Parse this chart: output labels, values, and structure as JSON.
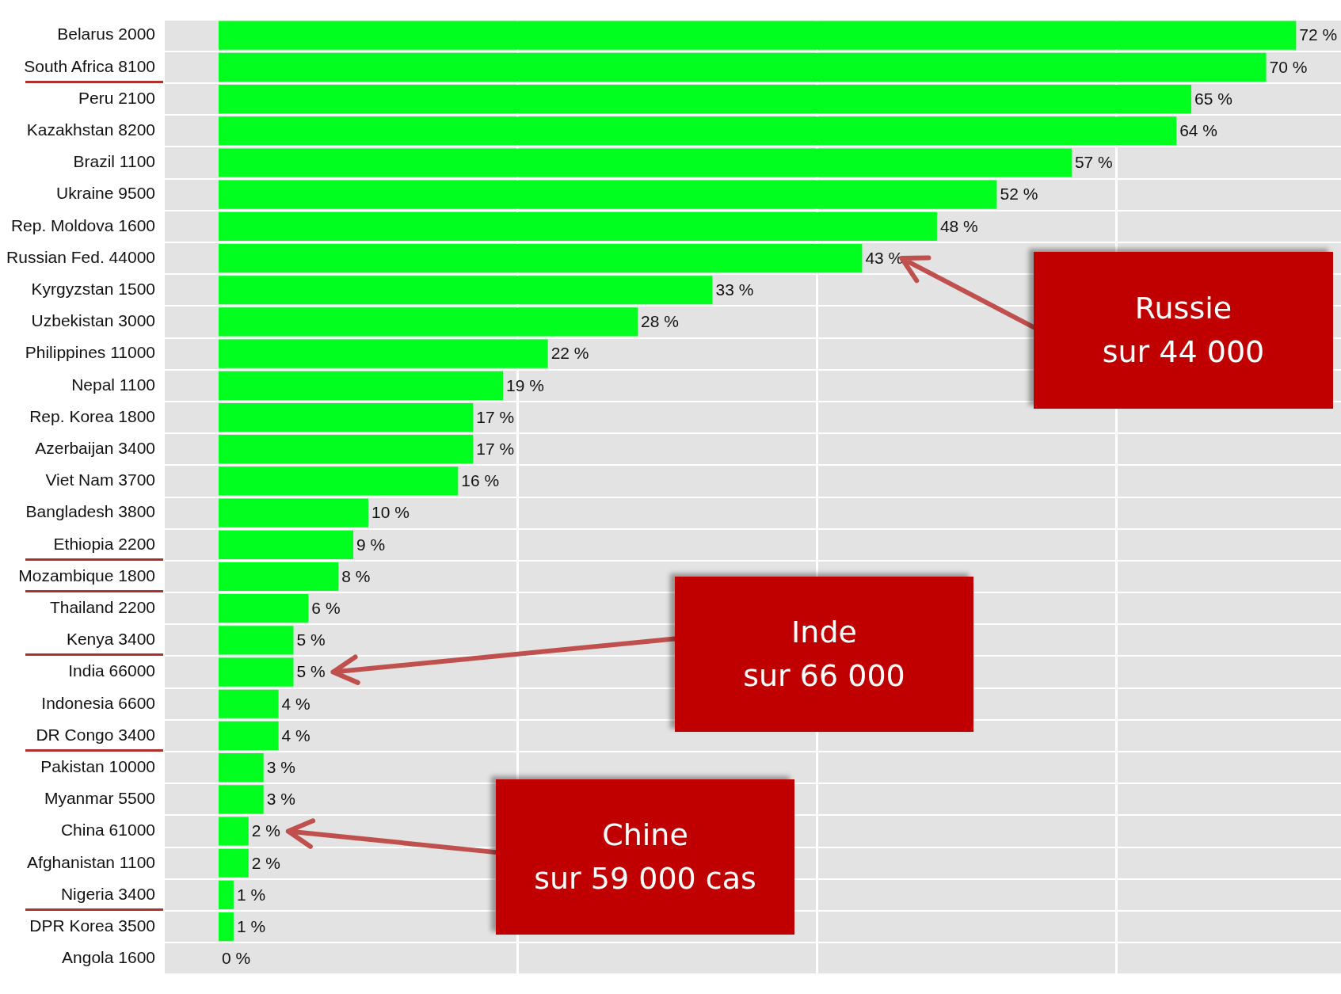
{
  "chart_data": {
    "type": "bar",
    "orientation": "horizontal",
    "categories": [
      "Belarus 2000",
      "South Africa 8100",
      "Peru 2100",
      "Kazakhstan 8200",
      "Brazil 1100",
      "Ukraine 9500",
      "Rep. Moldova 1600",
      "Russian Fed. 44000",
      "Kyrgyzstan 1500",
      "Uzbekistan 3000",
      "Philippines 11000",
      "Nepal 1100",
      "Rep. Korea 1800",
      "Azerbaijan 3400",
      "Viet Nam 3700",
      "Bangladesh 3800",
      "Ethiopia 2200",
      "Mozambique 1800",
      "Thailand 2200",
      "Kenya 3400",
      "India 66000",
      "Indonesia 6600",
      "DR Congo 3400",
      "Pakistan 10000",
      "Myanmar 5500",
      "China 61000",
      "Afghanistan 1100",
      "Nigeria 3400",
      "DPR Korea 3500",
      "Angola 1600"
    ],
    "values": [
      72,
      70,
      65,
      64,
      57,
      52,
      48,
      43,
      33,
      28,
      22,
      19,
      17,
      17,
      16,
      10,
      9,
      8,
      6,
      5,
      5,
      4,
      4,
      3,
      3,
      2,
      2,
      1,
      1,
      0
    ],
    "value_labels": [
      "72 %",
      "70 %",
      "65 %",
      "64 %",
      "57 %",
      "52 %",
      "48 %",
      "43 %",
      "33 %",
      "28 %",
      "22 %",
      "19 %",
      "17 %",
      "17 %",
      "16 %",
      "10 %",
      "9 %",
      "8 %",
      "6 %",
      "5 %",
      "5 %",
      "4 %",
      "4 %",
      "3 %",
      "3 %",
      "2 %",
      "2 %",
      "1 %",
      "1 %",
      "0 %"
    ],
    "color": "#00ff1e",
    "xlim": [
      -3.6,
      75
    ],
    "xticks": [
      {
        "value": 20,
        "label": null
      },
      {
        "value": 40,
        "label": null
      },
      {
        "value": 60,
        "label": null
      }
    ],
    "tick_labels": "y",
    "grid": true,
    "legend": false,
    "annotations": [
      "Russie\nsur 44 000",
      "Inde\nsur 66 000",
      "Chine\nsur 59 000 cas"
    ]
  }
}
